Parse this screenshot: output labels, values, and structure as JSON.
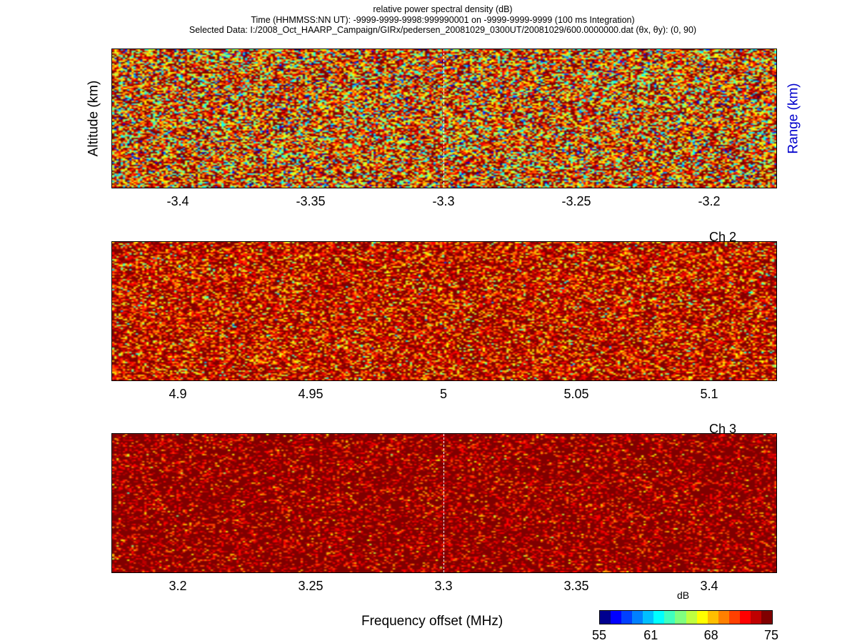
{
  "header": {
    "line1": "relative power spectral density (dB)",
    "line2": "Time (HHMMSS:NN UT): -9999-9999-9998:999990001 on -9999-9999-9999 (100 ms Integration)",
    "line3": "Selected Data: I:/2008_Oct_HAARP_Campaign/GIRx/pedersen_20081029_0300UT/20081029/600.0000000.dat  (θx, θy): (0, 90)"
  },
  "axes": {
    "ylabel_left": "Altitude (km)",
    "ylabel_right": "Range (km)",
    "xlabel": "Frequency offset (MHz)"
  },
  "colors": {
    "right_axis_label": "#0000cc",
    "panel_background": "#8b0000",
    "jet_colormap": [
      "#00008f",
      "#0000ff",
      "#0040ff",
      "#0080ff",
      "#00bfff",
      "#00ffff",
      "#40ffbf",
      "#80ff80",
      "#bfff40",
      "#ffff00",
      "#ffbf00",
      "#ff8000",
      "#ff4000",
      "#ff0000",
      "#bf0000",
      "#800000"
    ]
  },
  "chart_data": [
    {
      "type": "heatmap",
      "title": "",
      "channel_label": "",
      "xlabel": "",
      "ylabel": "Altitude (km)",
      "xlim": [
        -3.425,
        -3.175
      ],
      "xticks": [
        "-3.4",
        "-3.35",
        "-3.3",
        "-3.25",
        "-3.2"
      ],
      "xtick_values": [
        -3.4,
        -3.35,
        -3.3,
        -3.25,
        -3.2
      ],
      "center_marker": -3.3,
      "noise_mean_db": 70,
      "noise_spread_db": 6
    },
    {
      "type": "heatmap",
      "title": "",
      "channel_label": "Ch 2",
      "xlabel": "",
      "ylabel": "",
      "xlim": [
        4.875,
        5.125
      ],
      "xticks": [
        "4.9",
        "4.95",
        "5",
        "5.05",
        "5.1"
      ],
      "xtick_values": [
        4.9,
        4.95,
        5.0,
        5.05,
        5.1
      ],
      "center_marker": null,
      "noise_mean_db": 73,
      "noise_spread_db": 4
    },
    {
      "type": "heatmap",
      "title": "",
      "channel_label": "Ch 3",
      "xlabel": "Frequency offset (MHz)",
      "ylabel": "",
      "xlim": [
        3.175,
        3.425
      ],
      "xticks": [
        "3.2",
        "3.25",
        "3.3",
        "3.35",
        "3.4"
      ],
      "xtick_values": [
        3.2,
        3.25,
        3.3,
        3.35,
        3.4
      ],
      "center_marker": 3.3,
      "noise_mean_db": 75,
      "noise_spread_db": 3
    }
  ],
  "colorbar": {
    "unit": "dB",
    "range": [
      55,
      75
    ],
    "ticks": [
      "55",
      "61",
      "68",
      "75"
    ],
    "tick_values": [
      55,
      61,
      68,
      75
    ]
  }
}
